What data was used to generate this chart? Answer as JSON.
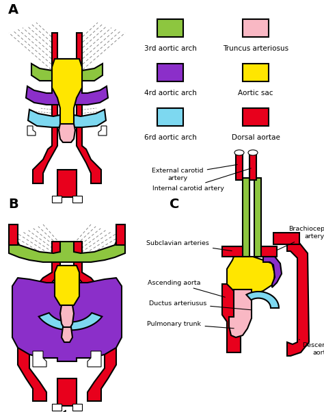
{
  "background_color": "#ffffff",
  "colors": {
    "red": "#e8001c",
    "green": "#8dc63f",
    "purple": "#8b2fc9",
    "cyan": "#7dd8f0",
    "yellow": "#ffe600",
    "pink": "#f9b8c4",
    "outline": "#000000",
    "white": "#ffffff",
    "dashed": "#888888"
  },
  "legend_items": [
    {
      "color": "#8dc63f",
      "label": "3rd aortic arch",
      "col": 0,
      "row": 0
    },
    {
      "color": "#f9b8c4",
      "label": "Truncus arteriosus",
      "col": 1,
      "row": 0
    },
    {
      "color": "#8b2fc9",
      "label": "4rd aortic arch",
      "col": 0,
      "row": 1
    },
    {
      "color": "#ffe600",
      "label": "Aortic sac",
      "col": 1,
      "row": 1
    },
    {
      "color": "#7dd8f0",
      "label": "6rd aortic arch",
      "col": 0,
      "row": 2
    },
    {
      "color": "#e8001c",
      "label": "Dorsal aortae",
      "col": 1,
      "row": 2
    }
  ]
}
